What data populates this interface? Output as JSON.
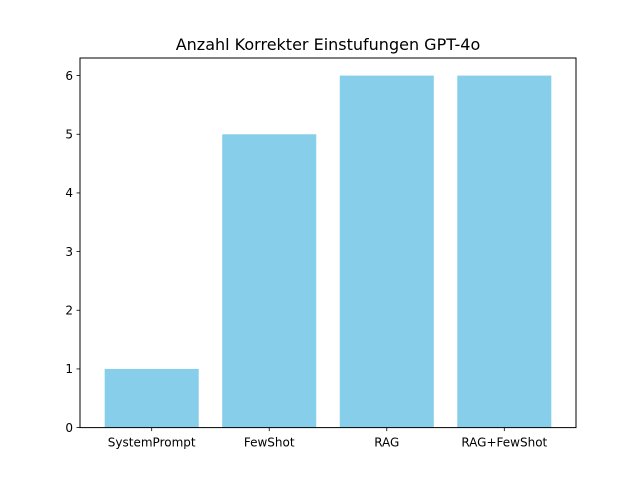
{
  "chart_data": {
    "type": "bar",
    "title": "Anzahl Korrekter Einstufungen GPT-4o",
    "xlabel": "",
    "ylabel": "",
    "categories": [
      "SystemPrompt",
      "FewShot",
      "RAG",
      "RAG+FewShot"
    ],
    "values": [
      1,
      5,
      6,
      6
    ],
    "ylim": [
      0,
      6.3
    ],
    "yticks": [
      0,
      1,
      2,
      3,
      4,
      5,
      6
    ],
    "ytick_labels": [
      "0",
      "1",
      "2",
      "3",
      "4",
      "5",
      "6"
    ],
    "bar_color": "#87CEEB",
    "grid": false,
    "legend": "none"
  }
}
